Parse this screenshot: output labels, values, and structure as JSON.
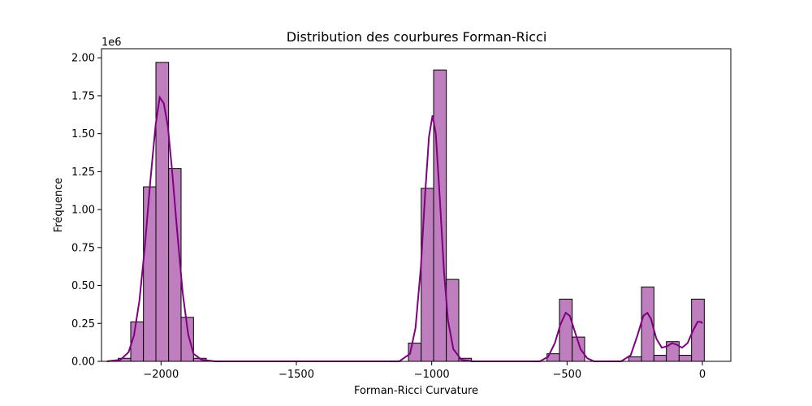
{
  "chart_data": {
    "type": "bar",
    "title": "Distribution des courbures Forman-Ricci",
    "xlabel": "Forman-Ricci Curvature",
    "ylabel": "Fréquence",
    "y_offset_label": "1e6",
    "xlim": [
      -2220,
      105
    ],
    "ylim": [
      0,
      2.06
    ],
    "x_ticks": [
      -2000,
      -1500,
      -1000,
      -500,
      0
    ],
    "x_tick_labels": [
      "−2000",
      "−1500",
      "−1000",
      "−500",
      "0"
    ],
    "y_ticks": [
      0,
      0.25,
      0.5,
      0.75,
      1.0,
      1.25,
      1.5,
      1.75,
      2.0
    ],
    "y_tick_labels": [
      "0.00",
      "0.25",
      "0.50",
      "0.75",
      "1.00",
      "1.25",
      "1.50",
      "1.75",
      "2.00"
    ],
    "bar_color": "#BF7FBF",
    "bar_edge_color": "#000000",
    "kde_color": "#800080",
    "grid": false,
    "histogram_bins": [
      {
        "x0": -2158,
        "x1": -2112,
        "value": 0.02
      },
      {
        "x0": -2112,
        "x1": -2065,
        "value": 0.26
      },
      {
        "x0": -2065,
        "x1": -2019,
        "value": 1.15
      },
      {
        "x0": -2019,
        "x1": -1972,
        "value": 1.97
      },
      {
        "x0": -1972,
        "x1": -1926,
        "value": 1.27
      },
      {
        "x0": -1926,
        "x1": -1880,
        "value": 0.29
      },
      {
        "x0": -1880,
        "x1": -1833,
        "value": 0.02
      },
      {
        "x0": -1086,
        "x1": -1039,
        "value": 0.12
      },
      {
        "x0": -1039,
        "x1": -993,
        "value": 1.14
      },
      {
        "x0": -993,
        "x1": -946,
        "value": 1.92
      },
      {
        "x0": -946,
        "x1": -900,
        "value": 0.54
      },
      {
        "x0": -900,
        "x1": -853,
        "value": 0.02
      },
      {
        "x0": -574,
        "x1": -528,
        "value": 0.05
      },
      {
        "x0": -528,
        "x1": -481,
        "value": 0.41
      },
      {
        "x0": -481,
        "x1": -435,
        "value": 0.16
      },
      {
        "x0": -272,
        "x1": -225,
        "value": 0.03
      },
      {
        "x0": -225,
        "x1": -179,
        "value": 0.49
      },
      {
        "x0": -179,
        "x1": -133,
        "value": 0.04
      },
      {
        "x0": -133,
        "x1": -86,
        "value": 0.13
      },
      {
        "x0": -86,
        "x1": -40,
        "value": 0.04
      },
      {
        "x0": -40,
        "x1": 7,
        "value": 0.41
      }
    ],
    "kde_points": [
      [
        -2200,
        0.0
      ],
      [
        -2150,
        0.01
      ],
      [
        -2120,
        0.06
      ],
      [
        -2100,
        0.17
      ],
      [
        -2080,
        0.4
      ],
      [
        -2060,
        0.75
      ],
      [
        -2040,
        1.18
      ],
      [
        -2020,
        1.56
      ],
      [
        -2005,
        1.74
      ],
      [
        -1990,
        1.7
      ],
      [
        -1975,
        1.55
      ],
      [
        -1960,
        1.27
      ],
      [
        -1940,
        0.85
      ],
      [
        -1920,
        0.45
      ],
      [
        -1900,
        0.18
      ],
      [
        -1880,
        0.05
      ],
      [
        -1850,
        0.01
      ],
      [
        -1800,
        0.0
      ],
      [
        -1500,
        0.0
      ],
      [
        -1120,
        0.0
      ],
      [
        -1080,
        0.05
      ],
      [
        -1060,
        0.22
      ],
      [
        -1040,
        0.62
      ],
      [
        -1025,
        1.08
      ],
      [
        -1010,
        1.48
      ],
      [
        -997,
        1.62
      ],
      [
        -985,
        1.5
      ],
      [
        -970,
        1.07
      ],
      [
        -955,
        0.6
      ],
      [
        -940,
        0.27
      ],
      [
        -920,
        0.08
      ],
      [
        -890,
        0.01
      ],
      [
        -850,
        0.0
      ],
      [
        -600,
        0.0
      ],
      [
        -570,
        0.03
      ],
      [
        -545,
        0.12
      ],
      [
        -525,
        0.24
      ],
      [
        -505,
        0.32
      ],
      [
        -490,
        0.3
      ],
      [
        -470,
        0.19
      ],
      [
        -450,
        0.08
      ],
      [
        -425,
        0.02
      ],
      [
        -400,
        0.0
      ],
      [
        -300,
        0.0
      ],
      [
        -265,
        0.04
      ],
      [
        -240,
        0.17
      ],
      [
        -218,
        0.3
      ],
      [
        -203,
        0.32
      ],
      [
        -190,
        0.28
      ],
      [
        -170,
        0.15
      ],
      [
        -150,
        0.09
      ],
      [
        -130,
        0.1
      ],
      [
        -112,
        0.12
      ],
      [
        -95,
        0.11
      ],
      [
        -75,
        0.09
      ],
      [
        -55,
        0.12
      ],
      [
        -35,
        0.2
      ],
      [
        -18,
        0.26
      ],
      [
        -5,
        0.26
      ],
      [
        0,
        0.25
      ]
    ]
  }
}
